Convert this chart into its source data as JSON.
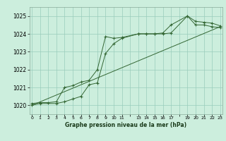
{
  "background_color": "#cceedd",
  "grid_color": "#99ccbb",
  "line_color": "#336633",
  "xlabel": "Graphe pression niveau de la mer (hPa)",
  "ylim": [
    1019.5,
    1025.5
  ],
  "yticks": [
    1020,
    1021,
    1022,
    1023,
    1024,
    1025
  ],
  "xlim": [
    -0.3,
    23.3
  ],
  "series1_x": [
    0,
    1,
    2,
    3,
    4,
    5,
    6,
    7,
    8,
    9,
    10,
    11,
    13,
    14,
    15,
    16,
    17,
    19,
    20,
    21,
    22,
    23
  ],
  "series1_y": [
    1020.1,
    1020.15,
    1020.15,
    1020.2,
    1021.0,
    1021.1,
    1021.3,
    1021.4,
    1022.0,
    1023.85,
    1023.75,
    1023.8,
    1024.0,
    1024.0,
    1024.0,
    1024.05,
    1024.5,
    1025.0,
    1024.7,
    1024.65,
    1024.6,
    1024.45
  ],
  "series2_x": [
    0,
    1,
    3,
    4,
    5,
    6,
    7,
    8,
    9,
    10,
    11,
    13,
    14,
    15,
    16,
    17,
    19,
    20,
    21,
    22,
    23
  ],
  "series2_y": [
    1020.0,
    1020.1,
    1020.1,
    1020.2,
    1020.35,
    1020.5,
    1021.15,
    1021.25,
    1022.9,
    1023.45,
    1023.75,
    1024.0,
    1024.0,
    1024.0,
    1024.0,
    1024.05,
    1025.0,
    1024.5,
    1024.5,
    1024.4,
    1024.35
  ],
  "series3_x": [
    0,
    23
  ],
  "series3_y": [
    1020.0,
    1024.4
  ],
  "tick_positions": [
    0,
    1,
    2,
    3,
    4,
    5,
    6,
    7,
    8,
    9,
    10,
    11,
    12,
    13,
    14,
    15,
    16,
    17,
    18,
    19,
    20,
    21,
    22,
    23
  ],
  "tick_labels": [
    "0",
    "1",
    "2",
    "3",
    "4",
    "5",
    "6",
    "7",
    "8",
    "9",
    "10",
    "11",
    "",
    "13",
    "14",
    "15",
    "16",
    "17",
    "",
    "19",
    "20",
    "21",
    "22",
    "23"
  ]
}
